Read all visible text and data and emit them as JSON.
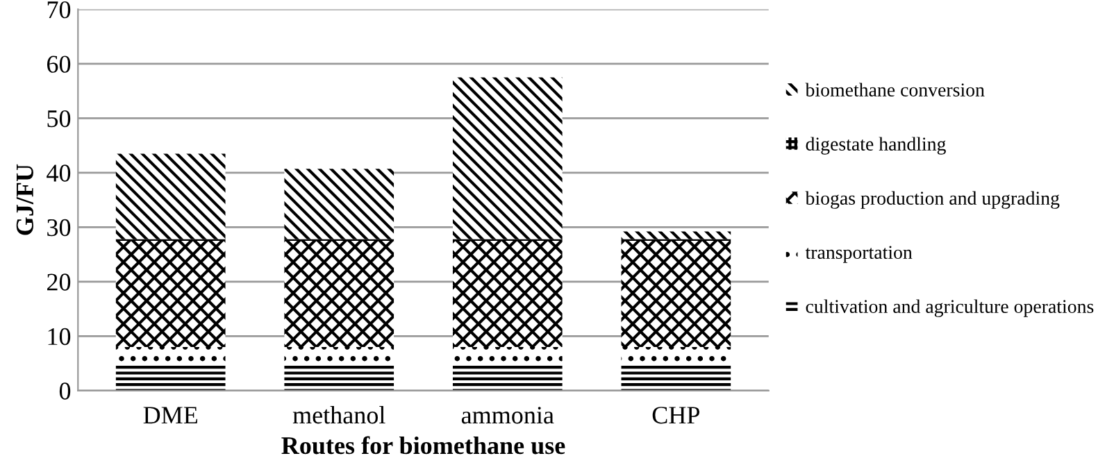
{
  "chart_data": {
    "type": "bar",
    "stacked": true,
    "xlabel": "Routes for biomethane use",
    "ylabel": "GJ/FU",
    "categories": [
      "DME",
      "methanol",
      "ammonia",
      "CHP"
    ],
    "series": [
      {
        "name": "cultivation and agriculture operations",
        "color": "#000000",
        "values": [
          5,
          5,
          5,
          5
        ]
      },
      {
        "name": "transportation",
        "color": "#000000",
        "values": [
          3,
          3,
          3,
          3
        ]
      },
      {
        "name": "biogas production and upgrading",
        "color": "#000000",
        "values": [
          19.5,
          19.5,
          19.5,
          19.5
        ]
      },
      {
        "name": "digestate handling",
        "color": "#000000",
        "values": [
          0.3,
          0.3,
          0.3,
          0.3
        ]
      },
      {
        "name": "biomethane conversion",
        "color": "#000000",
        "values": [
          15.7,
          12.9,
          29.7,
          1.4
        ]
      }
    ],
    "ylim": [
      0,
      70
    ],
    "yticks": [
      0,
      10,
      20,
      30,
      40,
      50,
      60,
      70
    ],
    "grid": "y",
    "legend": "right"
  }
}
